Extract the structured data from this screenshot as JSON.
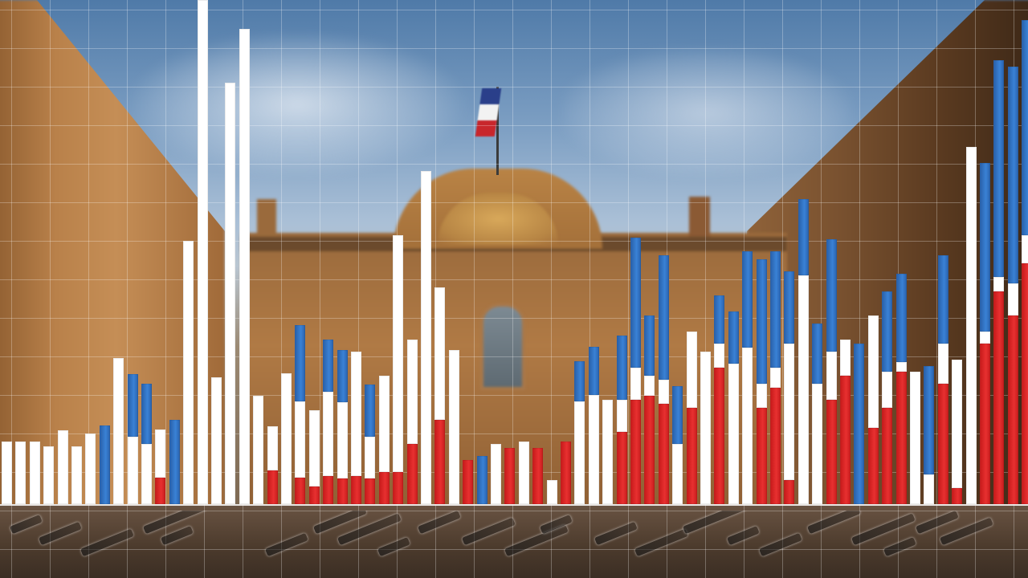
{
  "scene": {
    "description_colors": {
      "blue": "#2f6fc0",
      "white": "#ffffff",
      "red": "#e02424"
    },
    "flag_colors": [
      "#2a3f8a",
      "#f2f2f2",
      "#c8262c"
    ]
  },
  "chart_data": {
    "type": "bar",
    "stacked": true,
    "series_colors": [
      "#2f6fc0",
      "#ffffff",
      "#e02424"
    ],
    "ylim": [
      0,
      630
    ],
    "grid": true,
    "bars": [
      {
        "blue": 0,
        "white": 78,
        "red": 0
      },
      {
        "blue": 0,
        "white": 78,
        "red": 0
      },
      {
        "blue": 0,
        "white": 78,
        "red": 0
      },
      {
        "blue": 0,
        "white": 72,
        "red": 0
      },
      {
        "blue": 0,
        "white": 92,
        "red": 0
      },
      {
        "blue": 0,
        "white": 72,
        "red": 0
      },
      {
        "blue": 0,
        "white": 88,
        "red": 0
      },
      {
        "blue": 98,
        "white": 0,
        "red": 0
      },
      {
        "blue": 0,
        "white": 182,
        "red": 0
      },
      {
        "blue": 78,
        "white": 84,
        "red": 0
      },
      {
        "blue": 75,
        "white": 75,
        "red": 0
      },
      {
        "blue": 0,
        "white": 60,
        "red": 33
      },
      {
        "blue": 105,
        "white": 0,
        "red": 0
      },
      {
        "blue": 0,
        "white": 328,
        "red": 0
      },
      {
        "blue": 0,
        "white": 628,
        "red": 0
      },
      {
        "blue": 0,
        "white": 158,
        "red": 0
      },
      {
        "blue": 0,
        "white": 525,
        "red": 0
      },
      {
        "blue": 0,
        "white": 592,
        "red": 0
      },
      {
        "blue": 0,
        "white": 135,
        "red": 0
      },
      {
        "blue": 0,
        "white": 55,
        "red": 42
      },
      {
        "blue": 0,
        "white": 163,
        "red": 0
      },
      {
        "blue": 95,
        "white": 95,
        "red": 33
      },
      {
        "blue": 0,
        "white": 95,
        "red": 22
      },
      {
        "blue": 65,
        "white": 105,
        "red": 35
      },
      {
        "blue": 65,
        "white": 95,
        "red": 32
      },
      {
        "blue": 0,
        "white": 155,
        "red": 35
      },
      {
        "blue": 65,
        "white": 52,
        "red": 32
      },
      {
        "blue": 0,
        "white": 120,
        "red": 40
      },
      {
        "blue": 0,
        "white": 295,
        "red": 40
      },
      {
        "blue": 0,
        "white": 130,
        "red": 75
      },
      {
        "blue": 0,
        "white": 415,
        "red": 0
      },
      {
        "blue": 0,
        "white": 165,
        "red": 105
      },
      {
        "blue": 0,
        "white": 192,
        "red": 0
      },
      {
        "blue": 0,
        "white": 0,
        "red": 55
      },
      {
        "blue": 60,
        "white": 0,
        "red": 0
      },
      {
        "blue": 0,
        "white": 75,
        "red": 0
      },
      {
        "blue": 0,
        "white": 0,
        "red": 70
      },
      {
        "blue": 0,
        "white": 78,
        "red": 0
      },
      {
        "blue": 0,
        "white": 0,
        "red": 70
      },
      {
        "blue": 0,
        "white": 30,
        "red": 0
      },
      {
        "blue": 0,
        "white": 0,
        "red": 78
      },
      {
        "blue": 50,
        "white": 128,
        "red": 0
      },
      {
        "blue": 60,
        "white": 136,
        "red": 0
      },
      {
        "blue": 0,
        "white": 130,
        "red": 0
      },
      {
        "blue": 80,
        "white": 40,
        "red": 90
      },
      {
        "blue": 162,
        "white": 40,
        "red": 130
      },
      {
        "blue": 75,
        "white": 25,
        "red": 135
      },
      {
        "blue": 155,
        "white": 30,
        "red": 125
      },
      {
        "blue": 72,
        "white": 75,
        "red": 0
      },
      {
        "blue": 0,
        "white": 95,
        "red": 120
      },
      {
        "blue": 0,
        "white": 190,
        "red": 0
      },
      {
        "blue": 60,
        "white": 30,
        "red": 170
      },
      {
        "blue": 65,
        "white": 175,
        "red": 0
      },
      {
        "blue": 120,
        "white": 195,
        "red": 0
      },
      {
        "blue": 155,
        "white": 30,
        "red": 120
      },
      {
        "blue": 145,
        "white": 25,
        "red": 145
      },
      {
        "blue": 90,
        "white": 170,
        "red": 30
      },
      {
        "blue": 95,
        "white": 285,
        "red": 0
      },
      {
        "blue": 75,
        "white": 150,
        "red": 0
      },
      {
        "blue": 140,
        "white": 60,
        "red": 130
      },
      {
        "blue": 0,
        "white": 45,
        "red": 160
      },
      {
        "blue": 200,
        "white": 0,
        "red": 0
      },
      {
        "blue": 0,
        "white": 140,
        "red": 95
      },
      {
        "blue": 100,
        "white": 45,
        "red": 120
      },
      {
        "blue": 110,
        "white": 12,
        "red": 165
      },
      {
        "blue": 0,
        "white": 165,
        "red": 0
      },
      {
        "blue": 135,
        "white": 37,
        "red": 0
      },
      {
        "blue": 110,
        "white": 50,
        "red": 150
      },
      {
        "blue": 0,
        "white": 160,
        "red": 20
      },
      {
        "blue": 0,
        "white": 445,
        "red": 0
      },
      {
        "blue": 210,
        "white": 15,
        "red": 200
      },
      {
        "blue": 270,
        "white": 18,
        "red": 265
      },
      {
        "blue": 270,
        "white": 40,
        "red": 235
      },
      {
        "blue": 268,
        "white": 35,
        "red": 300
      }
    ]
  }
}
